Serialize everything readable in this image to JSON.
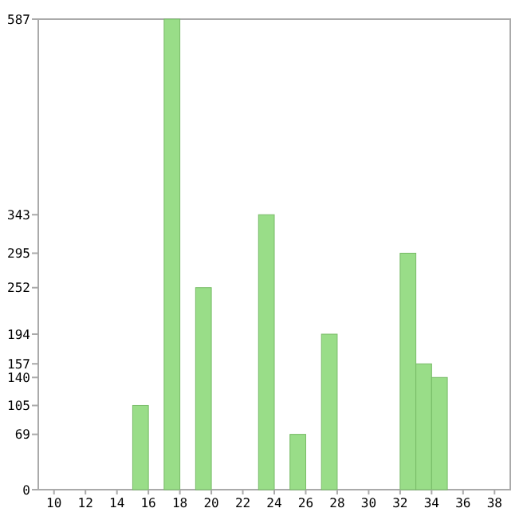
{
  "chart_data": {
    "type": "histogram",
    "bins": [
      9,
      10,
      11,
      12,
      13,
      14,
      15,
      16,
      17,
      18,
      19,
      20,
      21,
      22,
      23,
      24,
      25,
      26,
      27,
      28,
      29,
      30,
      31,
      32,
      33,
      34,
      35,
      36,
      37,
      38,
      39
    ],
    "values": [
      0,
      0,
      0,
      0,
      0,
      0,
      105,
      0,
      587,
      0,
      252,
      0,
      0,
      0,
      343,
      0,
      69,
      0,
      194,
      0,
      0,
      0,
      0,
      295,
      157,
      140,
      0,
      0,
      0,
      0
    ],
    "color": "#99dd88",
    "xlim": [
      9,
      39
    ],
    "xticks": [
      10,
      12,
      14,
      16,
      18,
      20,
      22,
      24,
      26,
      28,
      30,
      32,
      34,
      36,
      38
    ],
    "ylim": [
      0,
      587
    ],
    "yticks": [
      0,
      69,
      105,
      140,
      157,
      194,
      252,
      295,
      343,
      587
    ],
    "grid": false
  }
}
